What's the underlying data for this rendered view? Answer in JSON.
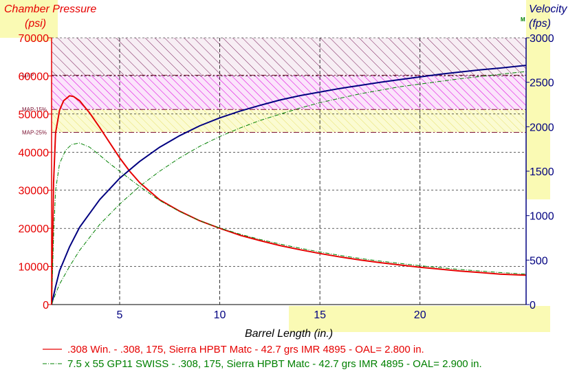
{
  "chart_data": {
    "type": "line",
    "title": "",
    "xlabel": "Barrel Length (in.)",
    "xlim": [
      1.6,
      25.3
    ],
    "x_ticks": [
      5,
      10,
      15,
      20
    ],
    "y_left": {
      "label": "Chamber Pressure",
      "unit": "(psi)",
      "ylim": [
        0,
        70000
      ],
      "ticks": [
        0,
        10000,
        20000,
        30000,
        40000,
        50000,
        60000,
        70000
      ]
    },
    "y_right": {
      "label": "Velocity",
      "unit": "(fps)",
      "marker": "M",
      "ylim": [
        0,
        3000
      ],
      "ticks": [
        0,
        500,
        1000,
        1500,
        2000,
        2500,
        3000
      ]
    },
    "grid": true,
    "reference_lines": [
      {
        "label": "MAP",
        "value": 60200
      },
      {
        "label": "MAP-15%",
        "value": 51200
      },
      {
        "label": "MAP-25%",
        "value": 45200
      }
    ],
    "series": [
      {
        "name": ".308 Win. - .308, 175, Sierra HPBT Matc - 42.7 grs IMR 4895 - OAL= 2.800 in.",
        "color": "#e60000",
        "style": "solid",
        "pressure": {
          "x": [
            1.6,
            1.7,
            1.8,
            2.0,
            2.2,
            2.5,
            2.7,
            3.0,
            3.5,
            4.0,
            4.5,
            5.0,
            5.5,
            6.0,
            7.0,
            8.0,
            9.0,
            10.0,
            11.0,
            12.0,
            13.0,
            14.0,
            15.0,
            16.0,
            17.0,
            18.0,
            19.0,
            20.0,
            21.0,
            22.0,
            23.0,
            24.0,
            25.3
          ],
          "y": [
            0,
            32000,
            45000,
            51000,
            53500,
            54800,
            54600,
            53500,
            50300,
            46500,
            42500,
            38500,
            35000,
            32000,
            27500,
            24500,
            22000,
            20000,
            18200,
            16800,
            15500,
            14400,
            13400,
            12500,
            11700,
            11000,
            10400,
            9800,
            9300,
            8800,
            8400,
            8000,
            7700
          ]
        },
        "velocity": {
          "x": [
            1.6,
            1.8,
            2.0,
            2.5,
            3.0,
            4.0,
            5.0,
            6.0,
            7.0,
            8.0,
            9.0,
            10.0,
            11.0,
            12.0,
            13.0,
            14.0,
            15.0,
            16.0,
            17.0,
            18.0,
            19.0,
            20.0,
            21.0,
            22.0,
            23.0,
            24.0,
            25.3
          ],
          "y": [
            0,
            200,
            380,
            650,
            870,
            1180,
            1420,
            1610,
            1770,
            1900,
            2010,
            2100,
            2175,
            2240,
            2300,
            2350,
            2390,
            2430,
            2465,
            2500,
            2530,
            2560,
            2590,
            2615,
            2640,
            2660,
            2690
          ]
        }
      },
      {
        "name": "7.5 x 55 GP11 SWISS - .308, 175, Sierra HPBT Matc - 42.7 grs IMR 4895 - OAL= 2.900 in.",
        "color": "#008000",
        "style": "dash-dot",
        "pressure": {
          "x": [
            1.6,
            1.7,
            1.8,
            2.0,
            2.3,
            2.6,
            3.0,
            3.5,
            4.0,
            4.5,
            5.0,
            5.5,
            6.0,
            7.0,
            8.0,
            9.0,
            10.0,
            11.0,
            12.0,
            13.0,
            14.0,
            15.0,
            16.0,
            17.0,
            18.0,
            19.0,
            20.0,
            21.0,
            22.0,
            23.0,
            24.0,
            25.3
          ],
          "y": [
            0,
            18000,
            30000,
            37000,
            40500,
            42000,
            42400,
            41300,
            39200,
            37000,
            35000,
            33000,
            31000,
            27300,
            24400,
            22000,
            20100,
            18500,
            17100,
            15900,
            14800,
            13800,
            12900,
            12100,
            11400,
            10800,
            10200,
            9700,
            9200,
            8800,
            8400,
            8000
          ]
        },
        "velocity": {
          "x": [
            1.6,
            1.8,
            2.0,
            2.5,
            3.0,
            4.0,
            5.0,
            6.0,
            7.0,
            8.0,
            9.0,
            10.0,
            11.0,
            12.0,
            13.0,
            14.0,
            15.0,
            16.0,
            17.0,
            18.0,
            19.0,
            20.0,
            21.0,
            22.0,
            23.0,
            24.0,
            25.3
          ],
          "y": [
            0,
            120,
            230,
            430,
            610,
            900,
            1130,
            1330,
            1500,
            1650,
            1780,
            1890,
            1985,
            2070,
            2140,
            2210,
            2270,
            2320,
            2370,
            2410,
            2450,
            2480,
            2510,
            2540,
            2565,
            2590,
            2620
          ]
        }
      }
    ]
  }
}
